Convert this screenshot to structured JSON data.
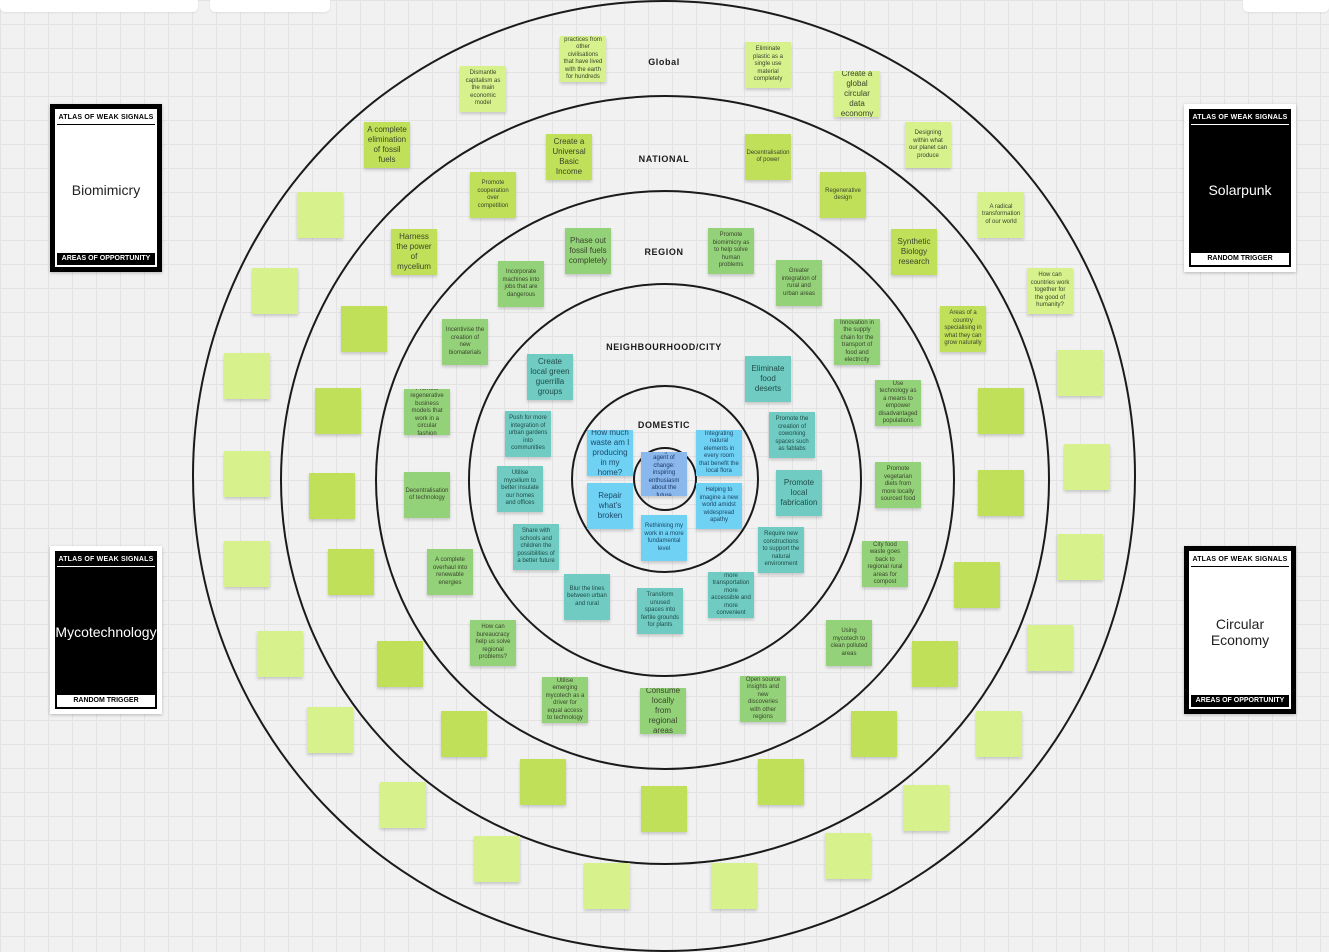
{
  "rings": {
    "global": "Global",
    "national": "NATIONAL",
    "region": "REGION",
    "neighbourhood": "NEIGHBOURHOOD/CITY",
    "domestic": "DOMESTIC"
  },
  "cards": {
    "biomimicry": {
      "header": "ATLAS OF WEAK SIGNALS",
      "title": "Biomimicry",
      "footer": "AREAS OF OPPORTUNITY"
    },
    "solarpunk": {
      "header": "ATLAS OF WEAK SIGNALS",
      "title": "Solarpunk",
      "footer": "RANDOM TRIGGER"
    },
    "mycotechnology": {
      "header": "ATLAS OF WEAK SIGNALS",
      "title": "Mycotechnology",
      "footer": "RANDOM TRIGGER"
    },
    "circular_economy": {
      "header": "ATLAS OF WEAK SIGNALS",
      "title": "Circular Economy",
      "footer": "AREAS OF OPPORTUNITY"
    }
  },
  "notes": {
    "domestic": [
      "How much waste am I producing in my home?",
      "Repair what's broken",
      "Being an agent of change: inspiring enthusiasm about the future",
      "Integrating natural elements in every room that benefit the local flora",
      "Rethinking my work in a more fundamental level",
      "Helping to imagine a new world amidst widespread apathy"
    ],
    "neighbourhood": [
      "Create local green guerrilla groups",
      "Eliminate food deserts",
      "Push for more integration of urban gardens into communities",
      "Promote the creation of coworking spaces such as fablabs",
      "Utilise mycelium to better insulate our homes and offices",
      "Promote local fabrication",
      "Share with schools and children the possibilities of a better future",
      "Require new constructions to support the natural environment",
      "Blur the lines between urban and rural",
      "Transform unused spaces into fertile grounds for plants",
      "Work towards more transportation more accessible and more convenient than cars"
    ],
    "region": [
      "Phase out fossil fuels completely",
      "Promote biomimicry as to help solve human problems",
      "Incorporate machines into jobs that are dangerous",
      "Greater integration of rural and urban areas",
      "Incentivise the creation of new biomaterials",
      "Innovation in the supply chain for the transport of food and electricity",
      "Promote regenerative business models that work in a circular fashion",
      "Use technology as a means to empower disadvantaged populations",
      "Decentralisation of technology",
      "Promote vegetarian diets from more locally sourced food",
      "A complete overhaul into renewable energies",
      "City food waste goes back to regional rural areas for compost",
      "How can bureaucracy help us solve regional problems?",
      "Using mycotech to clean polluted areas",
      "Utilise emerging mycotech as a driver for equal access to technology",
      "Consume locally from regional areas",
      "Open source insights and new discoveries with other regions"
    ],
    "national": [
      "A complete elimination of fossil fuels",
      "Create a Universal Basic Income",
      "Decentralisation of power",
      "Promote cooperation over competition",
      "Regenerative design",
      "Harness the power of mycelium",
      "Synthetic Biology research",
      "Areas of a country specialising in what they can grow naturally"
    ],
    "global": [
      "Share best practices from other civilisations that have lived with the earth for hundreds of years",
      "Eliminate plastic as a single use material completely",
      "Dismantle capitalism as the main economic model",
      "Create a global circular data economy",
      "Designing within what our planet can produce",
      "A radical transformation of our world",
      "How can countries work together for the good of humanity?"
    ]
  },
  "colors": {
    "lime": "#d7f18d",
    "yellow_green": "#c1e05a",
    "green": "#94d27a",
    "teal": "#70cbc2",
    "blue": "#6fd1f3",
    "light_blue": "#8ab7ec"
  }
}
